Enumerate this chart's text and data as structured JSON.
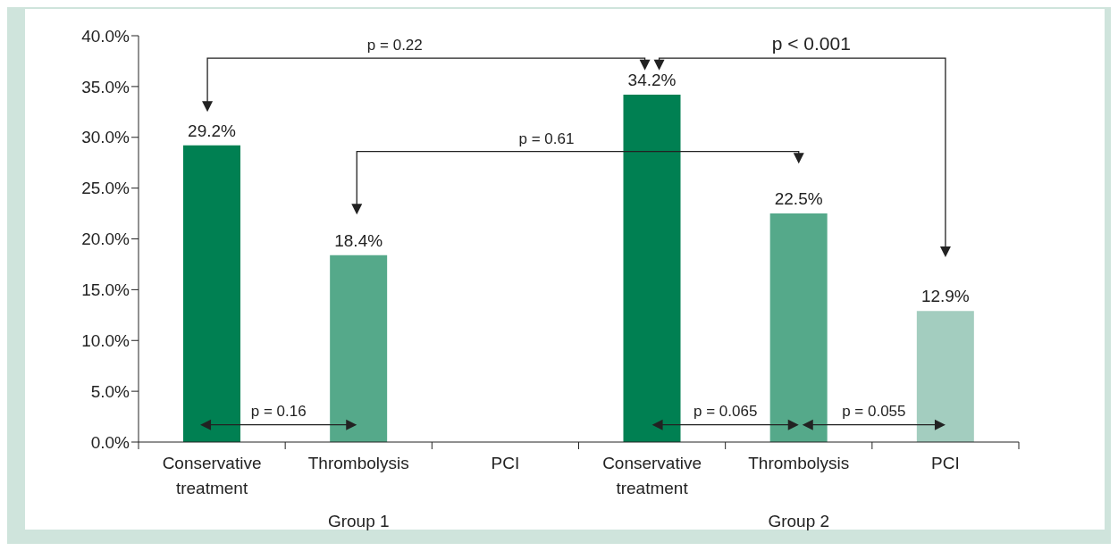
{
  "chart_data": {
    "type": "bar",
    "categories": [
      "Conservative treatment",
      "Thrombolysis",
      "PCI",
      "Conservative treatment",
      "Thrombolysis",
      "PCI"
    ],
    "values": [
      29.2,
      18.4,
      null,
      34.2,
      22.5,
      12.9
    ],
    "colors": [
      "#008052",
      "#55a98a",
      "#a3cdbf",
      "#008052",
      "#55a98a",
      "#a3cdbf"
    ],
    "value_labels": [
      "29.2%",
      "18.4%",
      null,
      "34.2%",
      "22.5%",
      "12.9%"
    ],
    "ylim": [
      0,
      40
    ],
    "yticks": [
      {
        "value": 0,
        "label": "0.0%"
      },
      {
        "value": 5,
        "label": "5.0%"
      },
      {
        "value": 10,
        "label": "10.0%"
      },
      {
        "value": 15,
        "label": "15.0%"
      },
      {
        "value": 20,
        "label": "20.0%"
      },
      {
        "value": 25,
        "label": "25.0%"
      },
      {
        "value": 30,
        "label": "30.0%"
      },
      {
        "value": 35,
        "label": "35.0%"
      },
      {
        "value": 40,
        "label": "40.0%"
      }
    ],
    "grid": false,
    "legend": false,
    "annotations": [
      "p = 0.22",
      "p < 0.001",
      "p = 0.61",
      "p = 0.16",
      "p = 0.065",
      "p = 0.055",
      "Group 1",
      "Group 2"
    ]
  }
}
